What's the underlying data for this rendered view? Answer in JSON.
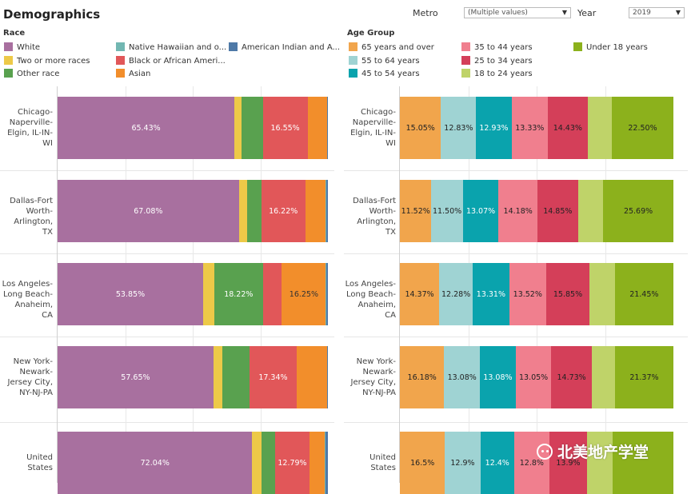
{
  "title": "Demographics",
  "filters": {
    "metro_label": "Metro",
    "metro_value": "(Multiple values)",
    "year_label": "Year",
    "year_value": "2019"
  },
  "race_section_title": "Race",
  "age_section_title": "Age Group",
  "race_legend": [
    {
      "label": "White",
      "color": "#a8709f"
    },
    {
      "label": "Native Hawaiian and o...",
      "color": "#72b7b2"
    },
    {
      "label": "American Indian and A...",
      "color": "#4e79a7"
    },
    {
      "label": "Two or more races",
      "color": "#edc948"
    },
    {
      "label": "Black or African Ameri...",
      "color": "#e15759"
    },
    {
      "label": "Other race",
      "color": "#59a14f"
    },
    {
      "label": "Asian",
      "color": "#f28e2b"
    }
  ],
  "age_legend": [
    {
      "label": "65 years and over",
      "color": "#f1a54c"
    },
    {
      "label": "35 to 44 years",
      "color": "#f07f8e"
    },
    {
      "label": "Under 18 years",
      "color": "#8cb11c"
    },
    {
      "label": "55 to 64 years",
      "color": "#9fd3d3"
    },
    {
      "label": "25 to 34 years",
      "color": "#d43f59"
    },
    {
      "label": "45 to 54 years",
      "color": "#0aa3ad"
    },
    {
      "label": "18 to 24 years",
      "color": "#bfd369"
    }
  ],
  "metros": [
    [
      "Chicago-",
      "Naperville-",
      "Elgin, IL-IN-",
      "WI"
    ],
    [
      "Dallas-Fort",
      "Worth-",
      "Arlington, TX"
    ],
    [
      "Los Angeles-",
      "Long Beach-",
      "Anaheim, CA"
    ],
    [
      "New York-",
      "Newark-",
      "Jersey City,",
      "NY-NJ-PA"
    ],
    [
      "United",
      "States"
    ]
  ],
  "watermark": "北美地产学堂",
  "chart_data": [
    {
      "type": "bar",
      "stacked": "100%",
      "orientation": "horizontal",
      "title": "Race",
      "categories": [
        "Chicago-Naperville-Elgin, IL-IN-WI",
        "Dallas-Fort Worth-Arlington, TX",
        "Los Angeles-Long Beach-Anaheim, CA",
        "New York-Newark-Jersey City, NY-NJ-PA",
        "United States"
      ],
      "series": [
        {
          "name": "White",
          "color": "#a8709f",
          "values": [
            65.43,
            67.08,
            53.85,
            57.65,
            72.04
          ],
          "labels": [
            "65.43%",
            "67.08%",
            "53.85%",
            "57.65%",
            "72.04%"
          ]
        },
        {
          "name": "Two or more races",
          "color": "#edc948",
          "values": [
            2.7,
            3.0,
            4.0,
            3.3,
            3.4
          ],
          "labels": [
            "",
            "",
            "",
            "",
            ""
          ]
        },
        {
          "name": "Other race",
          "color": "#59a14f",
          "values": [
            7.8,
            5.3,
            18.22,
            10.1,
            5.0
          ],
          "labels": [
            "",
            "",
            "18.22%",
            "",
            ""
          ]
        },
        {
          "name": "Black or African American",
          "color": "#e15759",
          "values": [
            16.55,
            16.22,
            6.9,
            17.34,
            12.79
          ],
          "labels": [
            "16.55%",
            "16.22%",
            "",
            "17.34%",
            "12.79%"
          ]
        },
        {
          "name": "Asian",
          "color": "#f28e2b",
          "values": [
            7.1,
            7.6,
            16.25,
            11.3,
            5.6
          ],
          "labels": [
            "",
            "",
            "16.25%",
            "",
            ""
          ]
        },
        {
          "name": "Native Hawaiian and other",
          "color": "#72b7b2",
          "values": [
            0.1,
            0.1,
            0.3,
            0.1,
            0.2
          ],
          "labels": [
            "",
            "",
            "",
            "",
            ""
          ]
        },
        {
          "name": "American Indian and Alaska Native",
          "color": "#4e79a7",
          "values": [
            0.32,
            0.7,
            0.48,
            0.21,
            0.97
          ],
          "labels": [
            "",
            "",
            "",
            "",
            ""
          ]
        }
      ],
      "xlim": [
        0,
        100
      ]
    },
    {
      "type": "bar",
      "stacked": "100%",
      "orientation": "horizontal",
      "title": "Age Group",
      "categories": [
        "Chicago-Naperville-Elgin, IL-IN-WI",
        "Dallas-Fort Worth-Arlington, TX",
        "Los Angeles-Long Beach-Anaheim, CA",
        "New York-Newark-Jersey City, NY-NJ-PA",
        "United States"
      ],
      "series": [
        {
          "name": "65 years and over",
          "color": "#f1a54c",
          "values": [
            15.05,
            11.52,
            14.37,
            16.18,
            16.5
          ],
          "labels": [
            "15.05%",
            "11.52%",
            "14.37%",
            "16.18%",
            "16.5%"
          ]
        },
        {
          "name": "55 to 64 years",
          "color": "#9fd3d3",
          "values": [
            12.83,
            11.5,
            12.28,
            13.08,
            12.9
          ],
          "labels": [
            "12.83%",
            "11.50%",
            "12.28%",
            "13.08%",
            "12.9%"
          ]
        },
        {
          "name": "45 to 54 years",
          "color": "#0aa3ad",
          "values": [
            12.93,
            13.07,
            13.31,
            13.08,
            12.4
          ],
          "labels": [
            "12.93%",
            "13.07%",
            "13.31%",
            "13.08%",
            "12.4%"
          ]
        },
        {
          "name": "35 to 44 years",
          "color": "#f07f8e",
          "values": [
            13.33,
            14.18,
            13.52,
            13.05,
            12.8
          ],
          "labels": [
            "13.33%",
            "14.18%",
            "13.52%",
            "13.05%",
            "12.8%"
          ]
        },
        {
          "name": "25 to 34 years",
          "color": "#d43f59",
          "values": [
            14.43,
            14.85,
            15.85,
            14.73,
            13.9
          ],
          "labels": [
            "14.43%",
            "14.85%",
            "15.85%",
            "14.73%",
            "13.9%"
          ]
        },
        {
          "name": "18 to 24 years",
          "color": "#bfd369",
          "values": [
            8.93,
            9.19,
            9.22,
            8.51,
            9.4
          ],
          "labels": [
            "",
            "",
            "",
            "",
            ""
          ]
        },
        {
          "name": "Under 18 years",
          "color": "#8cb11c",
          "values": [
            22.5,
            25.69,
            21.45,
            21.37,
            22.1
          ],
          "labels": [
            "22.50%",
            "25.69%",
            "21.45%",
            "21.37%",
            ""
          ]
        }
      ],
      "xlim": [
        0,
        100
      ]
    }
  ]
}
